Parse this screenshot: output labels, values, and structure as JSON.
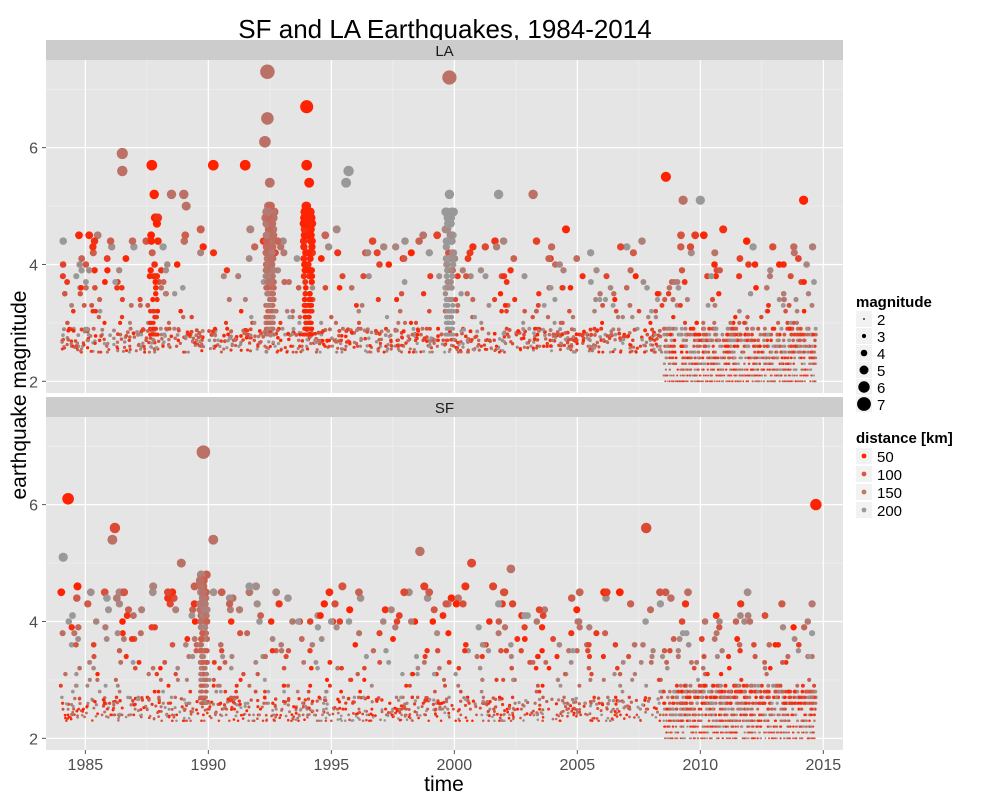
{
  "chart_data": {
    "type": "scatter",
    "title": "SF and LA Earthquakes, 1984-2014",
    "xlabel": "time",
    "ylabel": "earthquake magnitude",
    "xlim": [
      1983.4,
      2015.8
    ],
    "ylim": [
      1.8,
      7.5
    ],
    "xticks": [
      1985,
      1990,
      1995,
      2000,
      2005,
      2010,
      2015
    ],
    "yticks": [
      2,
      4,
      6
    ],
    "grid": true,
    "facets": [
      {
        "name": "LA",
        "notable_points": [
          {
            "x": 1986.5,
            "y": 5.9,
            "distance": 150
          },
          {
            "x": 1986.5,
            "y": 5.6,
            "distance": 150
          },
          {
            "x": 1987.7,
            "y": 5.7,
            "distance": 50
          },
          {
            "x": 1987.8,
            "y": 5.2,
            "distance": 50
          },
          {
            "x": 1988.5,
            "y": 5.2,
            "distance": 150
          },
          {
            "x": 1989.0,
            "y": 5.2,
            "distance": 150
          },
          {
            "x": 1989.1,
            "y": 5.0,
            "distance": 150
          },
          {
            "x": 1990.2,
            "y": 5.7,
            "distance": 50
          },
          {
            "x": 1991.5,
            "y": 5.7,
            "distance": 50
          },
          {
            "x": 1992.3,
            "y": 6.1,
            "distance": 150
          },
          {
            "x": 1992.4,
            "y": 7.3,
            "distance": 150
          },
          {
            "x": 1992.4,
            "y": 6.5,
            "distance": 150
          },
          {
            "x": 1992.5,
            "y": 5.4,
            "distance": 150
          },
          {
            "x": 1994.0,
            "y": 6.7,
            "distance": 50
          },
          {
            "x": 1994.0,
            "y": 5.7,
            "distance": 50
          },
          {
            "x": 1994.1,
            "y": 5.4,
            "distance": 50
          },
          {
            "x": 1995.7,
            "y": 5.6,
            "distance": 200
          },
          {
            "x": 1995.6,
            "y": 5.4,
            "distance": 200
          },
          {
            "x": 1999.8,
            "y": 7.2,
            "distance": 150
          },
          {
            "x": 1999.8,
            "y": 5.2,
            "distance": 200
          },
          {
            "x": 2001.8,
            "y": 5.2,
            "distance": 200
          },
          {
            "x": 2003.2,
            "y": 5.2,
            "distance": 150
          },
          {
            "x": 2008.6,
            "y": 5.5,
            "distance": 50
          },
          {
            "x": 2009.3,
            "y": 5.1,
            "distance": 150
          },
          {
            "x": 2010.0,
            "y": 5.1,
            "distance": 200
          },
          {
            "x": 2014.2,
            "y": 5.1,
            "distance": 50
          }
        ]
      },
      {
        "name": "SF",
        "notable_points": [
          {
            "x": 1984.1,
            "y": 5.1,
            "distance": 200
          },
          {
            "x": 1984.3,
            "y": 6.1,
            "distance": 50
          },
          {
            "x": 1986.2,
            "y": 5.6,
            "distance": 100
          },
          {
            "x": 1986.1,
            "y": 5.4,
            "distance": 150
          },
          {
            "x": 1988.9,
            "y": 5.0,
            "distance": 150
          },
          {
            "x": 1989.8,
            "y": 6.9,
            "distance": 150
          },
          {
            "x": 1990.2,
            "y": 5.4,
            "distance": 150
          },
          {
            "x": 1998.6,
            "y": 5.2,
            "distance": 150
          },
          {
            "x": 2000.7,
            "y": 5.0,
            "distance": 100
          },
          {
            "x": 2002.3,
            "y": 4.9,
            "distance": 150
          },
          {
            "x": 2007.8,
            "y": 5.6,
            "distance": 100
          },
          {
            "x": 2014.7,
            "y": 6.0,
            "distance": 50
          }
        ]
      }
    ],
    "legends": {
      "magnitude": {
        "title": "magnitude",
        "entries": [
          "2",
          "3",
          "4",
          "5",
          "6",
          "7"
        ],
        "values": [
          2,
          3,
          4,
          5,
          6,
          7
        ]
      },
      "distance": {
        "title": "distance [km]",
        "entries": [
          "50",
          "100",
          "150",
          "200"
        ],
        "values": [
          50,
          100,
          150,
          200
        ],
        "colors": [
          "#ff2200",
          "#e0553c",
          "#c47767",
          "#999999"
        ]
      }
    },
    "legend_position": "right",
    "colors": {
      "background": "#ffffff",
      "panel": "#e5e5e5",
      "grid_major": "#ffffff",
      "grid_minor": "#f2f2f2",
      "strip": "#cccccc"
    }
  }
}
